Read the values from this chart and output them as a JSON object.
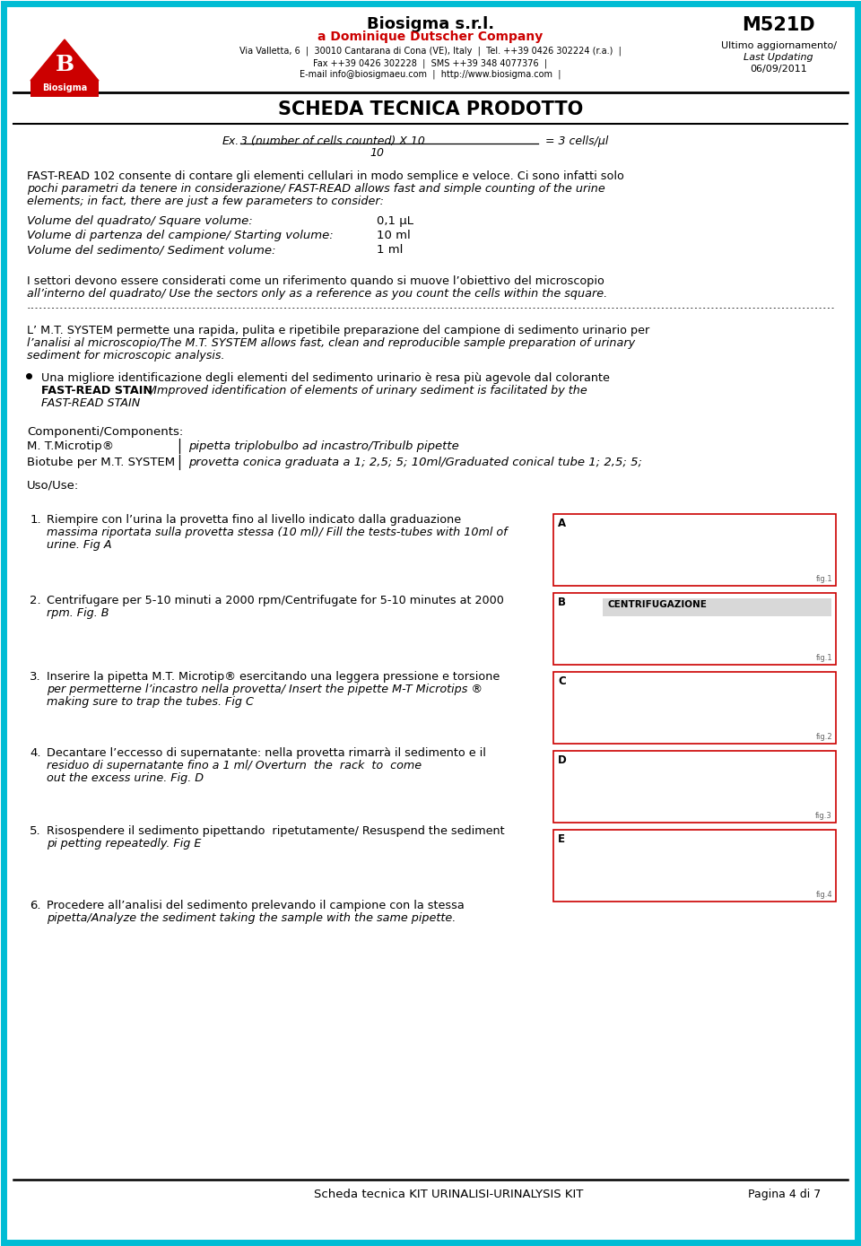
{
  "page_bg": "#ffffff",
  "border_color": "#00bcd4",
  "company_name": "Biosigma s.r.l.",
  "company_subtitle": "a Dominique Dutscher Company",
  "company_address": "Via Valletta, 6  |  30010 Cantarana di Cona (VE), Italy  |  Tel. ++39 0426 302224 (r.a.)  |",
  "company_fax": "Fax ++39 0426 302228  |  SMS ++39 348 4077376  |",
  "company_email": "E-mail info@biosigmaeu.com  |  http://www.biosigma.com  |",
  "product_code": "M521D",
  "update_label": "Ultimo aggiornamento/",
  "update_label2": "Last Updating",
  "update_date": "06/09/2011",
  "page_title": "SCHEDA TECNICA PRODOTTO",
  "para1_line1": "FAST-READ 102 consente di contare gli elementi cellulari in modo semplice e veloce. Ci sono infatti solo",
  "para1_line2": "pochi parametri da tenere in considerazione/ FAST-READ allows fast and simple counting of the urine",
  "para1_line3": "elements; in fact, there are just a few parameters to consider:",
  "vol1_label": "Volume del quadrato/ Square volume:",
  "vol1_value": "0,1 μL",
  "vol2_label": "Volume di partenza del campione/ Starting volume:",
  "vol2_value": "10 ml",
  "vol3_label": "Volume del sedimento/ Sediment volume:",
  "vol3_value": "1 ml",
  "para2_line1": "I settori devono essere considerati come un riferimento quando si muove l’obiettivo del microscopio",
  "para2_line2": "all’interno del quadrato/ Use the sectors only as a reference as you count the cells within the square.",
  "para3_line1": "L’ M.T. SYSTEM permette una rapida, pulita e ripetibile preparazione del campione di sedimento urinario per",
  "para3_line2": "l’analisi al microscopio/The M.T. SYSTEM allows fast, clean and reproducible sample preparation of urinary",
  "para3_line3": "sediment for microscopic analysis.",
  "bullet1_line1": "Una migliore identificazione degli elementi del sedimento urinario è resa più agevole dal colorante",
  "bullet1_bold": "FAST-READ STAIN",
  "bullet1_line2": "/Improved identification of elements of urinary sediment is facilitated by the",
  "bullet1_line3": "FAST-READ STAIN",
  "components_label": "Componenti/Components:",
  "comp1_name": "M. T.Microtip®",
  "comp1_desc": "pipetta triplobulbo ad incastro/Tribulb pipette",
  "comp2_name": "Biotube per M.T. SYSTEM",
  "comp2_desc": "provetta conica graduata a 1; 2,5; 5; 10ml/Graduated conical tube 1; 2,5; 5;",
  "uso_label": "Uso/Use:",
  "step1_line1": "Riempire con l’urina la provetta fino al livello indicato dalla graduazione",
  "step1_line2": "massima riportata sulla provetta stessa (10 ml)/ Fill the tests-tubes with 10ml of",
  "step1_line3": "urine. Fig A",
  "step2_line1": "Centrifugare per 5-10 minuti a 2000 rpm/Centrifugate for 5-10 minutes at 2000",
  "step2_line2": "rpm. Fig. B",
  "step3_line1": "Inserire la pipetta M.T. Microtip® esercitando una leggera pressione e torsione",
  "step3_line2": "per permetterne l’incastro nella provetta/ Insert the pipette M-T Microtips ®",
  "step3_line3": "making sure to trap the tubes. Fig C",
  "step4_line1": "Decantare l’eccesso di supernatante: nella provetta rimarrà il sedimento e il",
  "step4_line2": "residuo di supernatante fino a 1 ml/ Overturn  the  rack  to  come",
  "step4_line3": "out the excess urine. Fig. D",
  "step5_line1": "Risospendere il sedimento pipettando  ripetutamente/ Resuspend the sediment",
  "step5_line2": "pi petting repeatedly. Fig E",
  "step6_line1": "Procedere all’analisi del sedimento prelevando il campione con la stessa",
  "step6_line2": "pipetta/Analyze the sediment taking the sample with the same pipette.",
  "footer_left": "Scheda tecnica KIT URINALISI-URINALYSIS KIT",
  "footer_right": "Pagina 4 di 7",
  "red_color": "#cc0000",
  "cyan_color": "#00bcd4"
}
